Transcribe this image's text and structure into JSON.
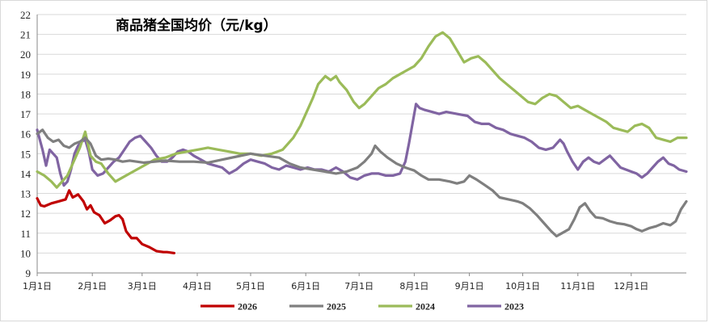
{
  "chart_data": {
    "type": "line",
    "title": "商品猪全国均价（元/kg）",
    "xlabel": "",
    "ylabel": "",
    "ylim": [
      9,
      22
    ],
    "yticks": [
      9,
      10,
      11,
      12,
      13,
      14,
      15,
      16,
      17,
      18,
      19,
      20,
      21,
      22
    ],
    "xlim": [
      0,
      365
    ],
    "xticks": [
      {
        "day": 0,
        "label": "1月1日"
      },
      {
        "day": 31,
        "label": "2月1日"
      },
      {
        "day": 59,
        "label": "3月1日"
      },
      {
        "day": 90,
        "label": "4月1日"
      },
      {
        "day": 120,
        "label": "5月1日"
      },
      {
        "day": 151,
        "label": "6月1日"
      },
      {
        "day": 181,
        "label": "7月1日"
      },
      {
        "day": 212,
        "label": "8月1日"
      },
      {
        "day": 243,
        "label": "9月1日"
      },
      {
        "day": 273,
        "label": "10月1日"
      },
      {
        "day": 304,
        "label": "11月1日"
      },
      {
        "day": 334,
        "label": "12月1日"
      }
    ],
    "grid": true,
    "legend_position": "bottom",
    "series": [
      {
        "name": "2026",
        "color": "#c00000",
        "points": [
          [
            0,
            12.75
          ],
          [
            2,
            12.4
          ],
          [
            4,
            12.35
          ],
          [
            8,
            12.5
          ],
          [
            12,
            12.6
          ],
          [
            16,
            12.7
          ],
          [
            18,
            13.15
          ],
          [
            20,
            12.8
          ],
          [
            23,
            12.95
          ],
          [
            26,
            12.6
          ],
          [
            28,
            12.2
          ],
          [
            30,
            12.4
          ],
          [
            32,
            12.05
          ],
          [
            35,
            11.9
          ],
          [
            38,
            11.5
          ],
          [
            41,
            11.65
          ],
          [
            44,
            11.85
          ],
          [
            46,
            11.9
          ],
          [
            48,
            11.7
          ],
          [
            50,
            11.1
          ],
          [
            53,
            10.75
          ],
          [
            56,
            10.75
          ],
          [
            59,
            10.45
          ],
          [
            63,
            10.3
          ],
          [
            67,
            10.1
          ],
          [
            71,
            10.05
          ],
          [
            73,
            10.05
          ],
          [
            77,
            10.0
          ]
        ]
      },
      {
        "name": "2025",
        "color": "#7f7f7f",
        "points": [
          [
            0,
            16.0
          ],
          [
            3,
            16.2
          ],
          [
            6,
            15.8
          ],
          [
            9,
            15.6
          ],
          [
            12,
            15.7
          ],
          [
            15,
            15.4
          ],
          [
            18,
            15.3
          ],
          [
            21,
            15.5
          ],
          [
            24,
            15.6
          ],
          [
            27,
            15.8
          ],
          [
            30,
            15.5
          ],
          [
            33,
            14.9
          ],
          [
            36,
            14.7
          ],
          [
            40,
            14.75
          ],
          [
            44,
            14.7
          ],
          [
            48,
            14.6
          ],
          [
            52,
            14.65
          ],
          [
            56,
            14.6
          ],
          [
            60,
            14.55
          ],
          [
            66,
            14.6
          ],
          [
            72,
            14.65
          ],
          [
            80,
            14.6
          ],
          [
            88,
            14.6
          ],
          [
            96,
            14.55
          ],
          [
            104,
            14.7
          ],
          [
            112,
            14.85
          ],
          [
            120,
            15.0
          ],
          [
            128,
            14.9
          ],
          [
            136,
            14.8
          ],
          [
            142,
            14.5
          ],
          [
            148,
            14.3
          ],
          [
            155,
            14.2
          ],
          [
            162,
            14.1
          ],
          [
            168,
            14.0
          ],
          [
            174,
            14.1
          ],
          [
            180,
            14.3
          ],
          [
            184,
            14.6
          ],
          [
            188,
            15.0
          ],
          [
            190,
            15.4
          ],
          [
            193,
            15.1
          ],
          [
            197,
            14.8
          ],
          [
            202,
            14.5
          ],
          [
            207,
            14.3
          ],
          [
            212,
            14.15
          ],
          [
            216,
            13.9
          ],
          [
            220,
            13.7
          ],
          [
            226,
            13.7
          ],
          [
            232,
            13.6
          ],
          [
            236,
            13.5
          ],
          [
            240,
            13.6
          ],
          [
            243,
            13.9
          ],
          [
            247,
            13.7
          ],
          [
            252,
            13.4
          ],
          [
            256,
            13.15
          ],
          [
            260,
            12.8
          ],
          [
            265,
            12.7
          ],
          [
            270,
            12.6
          ],
          [
            273,
            12.5
          ],
          [
            277,
            12.25
          ],
          [
            281,
            11.9
          ],
          [
            285,
            11.5
          ],
          [
            289,
            11.1
          ],
          [
            292,
            10.85
          ],
          [
            295,
            11.0
          ],
          [
            299,
            11.2
          ],
          [
            302,
            11.7
          ],
          [
            305,
            12.3
          ],
          [
            308,
            12.5
          ],
          [
            311,
            12.1
          ],
          [
            314,
            11.8
          ],
          [
            318,
            11.75
          ],
          [
            322,
            11.6
          ],
          [
            326,
            11.5
          ],
          [
            330,
            11.45
          ],
          [
            334,
            11.35
          ],
          [
            337,
            11.2
          ],
          [
            340,
            11.1
          ],
          [
            344,
            11.25
          ],
          [
            348,
            11.35
          ],
          [
            352,
            11.5
          ],
          [
            356,
            11.4
          ],
          [
            359,
            11.6
          ],
          [
            362,
            12.2
          ],
          [
            365,
            12.6
          ]
        ]
      },
      {
        "name": "2024",
        "color": "#9bbb59",
        "points": [
          [
            0,
            14.1
          ],
          [
            4,
            13.9
          ],
          [
            8,
            13.6
          ],
          [
            11,
            13.3
          ],
          [
            14,
            13.6
          ],
          [
            17,
            13.9
          ],
          [
            20,
            14.5
          ],
          [
            24,
            15.3
          ],
          [
            27,
            16.1
          ],
          [
            30,
            14.9
          ],
          [
            33,
            14.6
          ],
          [
            36,
            14.5
          ],
          [
            40,
            14.0
          ],
          [
            44,
            13.6
          ],
          [
            48,
            13.8
          ],
          [
            52,
            14.0
          ],
          [
            56,
            14.2
          ],
          [
            60,
            14.4
          ],
          [
            66,
            14.7
          ],
          [
            72,
            14.8
          ],
          [
            78,
            15.0
          ],
          [
            84,
            15.1
          ],
          [
            90,
            15.2
          ],
          [
            96,
            15.3
          ],
          [
            102,
            15.2
          ],
          [
            108,
            15.1
          ],
          [
            114,
            15.0
          ],
          [
            120,
            15.0
          ],
          [
            126,
            14.9
          ],
          [
            132,
            15.0
          ],
          [
            138,
            15.2
          ],
          [
            144,
            15.8
          ],
          [
            148,
            16.4
          ],
          [
            152,
            17.2
          ],
          [
            155,
            17.8
          ],
          [
            158,
            18.5
          ],
          [
            162,
            18.9
          ],
          [
            165,
            18.7
          ],
          [
            168,
            18.9
          ],
          [
            170,
            18.6
          ],
          [
            174,
            18.2
          ],
          [
            178,
            17.6
          ],
          [
            181,
            17.3
          ],
          [
            184,
            17.5
          ],
          [
            188,
            17.9
          ],
          [
            192,
            18.3
          ],
          [
            196,
            18.5
          ],
          [
            200,
            18.8
          ],
          [
            204,
            19.0
          ],
          [
            208,
            19.2
          ],
          [
            212,
            19.4
          ],
          [
            216,
            19.8
          ],
          [
            220,
            20.4
          ],
          [
            224,
            20.9
          ],
          [
            228,
            21.1
          ],
          [
            232,
            20.8
          ],
          [
            236,
            20.2
          ],
          [
            240,
            19.6
          ],
          [
            244,
            19.8
          ],
          [
            248,
            19.9
          ],
          [
            252,
            19.6
          ],
          [
            256,
            19.2
          ],
          [
            260,
            18.8
          ],
          [
            264,
            18.5
          ],
          [
            268,
            18.2
          ],
          [
            272,
            17.9
          ],
          [
            276,
            17.6
          ],
          [
            280,
            17.5
          ],
          [
            284,
            17.8
          ],
          [
            288,
            18.0
          ],
          [
            292,
            17.9
          ],
          [
            296,
            17.6
          ],
          [
            300,
            17.3
          ],
          [
            304,
            17.4
          ],
          [
            308,
            17.2
          ],
          [
            312,
            17.0
          ],
          [
            316,
            16.8
          ],
          [
            320,
            16.6
          ],
          [
            324,
            16.3
          ],
          [
            328,
            16.2
          ],
          [
            332,
            16.1
          ],
          [
            336,
            16.4
          ],
          [
            340,
            16.5
          ],
          [
            344,
            16.3
          ],
          [
            348,
            15.8
          ],
          [
            352,
            15.7
          ],
          [
            356,
            15.6
          ],
          [
            360,
            15.8
          ],
          [
            365,
            15.8
          ]
        ]
      },
      {
        "name": "2023",
        "color": "#8064a2",
        "points": [
          [
            0,
            16.2
          ],
          [
            3,
            15.2
          ],
          [
            5,
            14.4
          ],
          [
            7,
            15.2
          ],
          [
            9,
            15.0
          ],
          [
            11,
            14.8
          ],
          [
            13,
            14.0
          ],
          [
            15,
            13.4
          ],
          [
            17,
            13.6
          ],
          [
            19,
            14.2
          ],
          [
            21,
            15.0
          ],
          [
            23,
            15.4
          ],
          [
            25,
            15.6
          ],
          [
            27,
            15.7
          ],
          [
            29,
            15.1
          ],
          [
            31,
            14.2
          ],
          [
            34,
            13.9
          ],
          [
            37,
            14.0
          ],
          [
            40,
            14.3
          ],
          [
            43,
            14.6
          ],
          [
            46,
            14.8
          ],
          [
            49,
            15.2
          ],
          [
            52,
            15.6
          ],
          [
            55,
            15.8
          ],
          [
            58,
            15.9
          ],
          [
            61,
            15.6
          ],
          [
            64,
            15.3
          ],
          [
            67,
            14.9
          ],
          [
            70,
            14.6
          ],
          [
            73,
            14.6
          ],
          [
            76,
            14.8
          ],
          [
            79,
            15.1
          ],
          [
            82,
            15.2
          ],
          [
            85,
            15.1
          ],
          [
            88,
            14.9
          ],
          [
            92,
            14.7
          ],
          [
            96,
            14.5
          ],
          [
            100,
            14.4
          ],
          [
            104,
            14.3
          ],
          [
            108,
            14.0
          ],
          [
            112,
            14.2
          ],
          [
            116,
            14.5
          ],
          [
            120,
            14.7
          ],
          [
            124,
            14.6
          ],
          [
            128,
            14.5
          ],
          [
            132,
            14.3
          ],
          [
            136,
            14.2
          ],
          [
            140,
            14.4
          ],
          [
            144,
            14.3
          ],
          [
            148,
            14.2
          ],
          [
            152,
            14.3
          ],
          [
            156,
            14.2
          ],
          [
            160,
            14.2
          ],
          [
            164,
            14.1
          ],
          [
            168,
            14.3
          ],
          [
            172,
            14.1
          ],
          [
            176,
            13.8
          ],
          [
            180,
            13.7
          ],
          [
            184,
            13.9
          ],
          [
            188,
            14.0
          ],
          [
            192,
            14.0
          ],
          [
            196,
            13.9
          ],
          [
            200,
            13.9
          ],
          [
            204,
            14.0
          ],
          [
            207,
            14.6
          ],
          [
            209,
            15.5
          ],
          [
            211,
            16.5
          ],
          [
            213,
            17.5
          ],
          [
            215,
            17.3
          ],
          [
            218,
            17.2
          ],
          [
            222,
            17.1
          ],
          [
            226,
            17.0
          ],
          [
            230,
            17.1
          ],
          [
            236,
            17.0
          ],
          [
            242,
            16.9
          ],
          [
            246,
            16.6
          ],
          [
            250,
            16.5
          ],
          [
            254,
            16.5
          ],
          [
            258,
            16.3
          ],
          [
            262,
            16.2
          ],
          [
            266,
            16.0
          ],
          [
            270,
            15.9
          ],
          [
            274,
            15.8
          ],
          [
            278,
            15.6
          ],
          [
            282,
            15.3
          ],
          [
            286,
            15.2
          ],
          [
            290,
            15.3
          ],
          [
            294,
            15.7
          ],
          [
            296,
            15.5
          ],
          [
            298,
            15.1
          ],
          [
            301,
            14.6
          ],
          [
            304,
            14.2
          ],
          [
            307,
            14.6
          ],
          [
            310,
            14.8
          ],
          [
            313,
            14.6
          ],
          [
            316,
            14.5
          ],
          [
            319,
            14.7
          ],
          [
            322,
            14.9
          ],
          [
            325,
            14.6
          ],
          [
            328,
            14.3
          ],
          [
            331,
            14.2
          ],
          [
            334,
            14.1
          ],
          [
            337,
            14.0
          ],
          [
            340,
            13.8
          ],
          [
            343,
            14.0
          ],
          [
            346,
            14.3
          ],
          [
            349,
            14.6
          ],
          [
            352,
            14.8
          ],
          [
            355,
            14.5
          ],
          [
            358,
            14.4
          ],
          [
            361,
            14.2
          ],
          [
            365,
            14.1
          ]
        ]
      }
    ]
  }
}
